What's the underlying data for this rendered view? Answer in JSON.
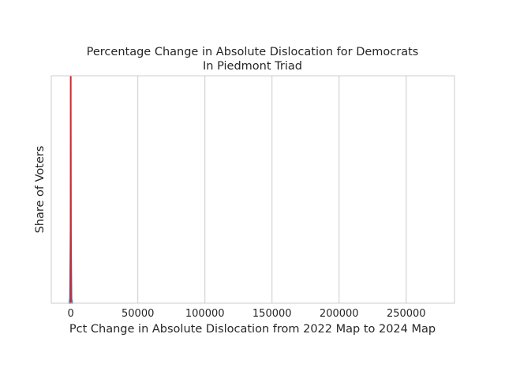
{
  "chart_data": {
    "type": "area",
    "title": "Percentage Change in Absolute Dislocation for Democrats",
    "subtitle": "In Piedmont Triad",
    "xlabel": "Pct Change in Absolute Dislocation from 2022 Map to 2024 Map",
    "ylabel": "Share of Voters",
    "xlim": [
      -14500,
      286000
    ],
    "ylim": [
      0,
      1
    ],
    "x_ticks": [
      0,
      50000,
      100000,
      150000,
      200000,
      250000
    ],
    "x_tick_labels": [
      "0",
      "50000",
      "100000",
      "150000",
      "200000",
      "250000"
    ],
    "grid": "vertical",
    "legend": "none",
    "density": {
      "x": [
        -1200,
        -700,
        -300,
        0,
        300,
        700,
        1200
      ],
      "y": [
        0,
        0.02,
        0.3,
        1.0,
        0.3,
        0.02,
        0
      ]
    },
    "reference_line": {
      "x": 0,
      "color": "#d62728"
    },
    "colors": {
      "fill": "#4c72b0",
      "outline": "#4c72b0",
      "reference": "#d62728",
      "grid": "#cccccc",
      "text": "#262626"
    }
  }
}
